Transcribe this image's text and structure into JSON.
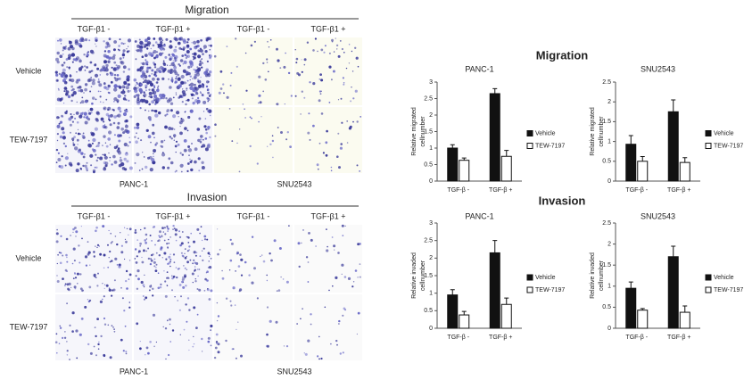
{
  "image_panels": [
    {
      "title": "Migration",
      "columns": [
        "TGF-β1 -",
        "TGF-β1 +",
        "TGF-β1 -",
        "TGF-β1 +"
      ],
      "rows": [
        "Vehicle",
        "TEW-7197"
      ],
      "cell_lines": [
        "PANC-1",
        "SNU2543"
      ]
    },
    {
      "title": "Invasion",
      "columns": [
        "TGF-β1 -",
        "TGF-β1 +",
        "TGF-β1 -",
        "TGF-β1 +"
      ],
      "rows": [
        "Vehicle",
        "TEW-7197"
      ],
      "cell_lines": [
        "PANC-1",
        "SNU2543"
      ]
    }
  ],
  "chart_sections": [
    "Migration",
    "Invasion"
  ],
  "chart_data": [
    {
      "type": "bar",
      "title": "PANC-1",
      "y_label": [
        "Relative migrated",
        "cellnumber"
      ],
      "categories": [
        "TGF-β -",
        "TGF-β +"
      ],
      "series": [
        {
          "name": "Vehicle",
          "color": "#111111",
          "values": [
            1.0,
            2.65
          ],
          "errors": [
            0.1,
            0.15
          ]
        },
        {
          "name": "TEW-7197",
          "color": "#ffffff",
          "values": [
            0.63,
            0.75
          ],
          "errors": [
            0.07,
            0.18
          ]
        }
      ],
      "ylim": [
        0,
        3
      ],
      "yticks": [
        0,
        0.5,
        1,
        1.5,
        2,
        2.5,
        3
      ],
      "legend": "right"
    },
    {
      "type": "bar",
      "title": "SNU2543",
      "y_label": [
        "Relative migrated",
        "cellnumber"
      ],
      "categories": [
        "TGF-β -",
        "TGF-β +"
      ],
      "series": [
        {
          "name": "Vehicle",
          "color": "#111111",
          "values": [
            0.93,
            1.75
          ],
          "errors": [
            0.22,
            0.3
          ]
        },
        {
          "name": "TEW-7197",
          "color": "#ffffff",
          "values": [
            0.5,
            0.47
          ],
          "errors": [
            0.12,
            0.12
          ]
        }
      ],
      "ylim": [
        0,
        2.5
      ],
      "yticks": [
        0,
        0.5,
        1,
        1.5,
        2,
        2.5
      ],
      "legend": "right"
    },
    {
      "type": "bar",
      "title": "PANC-1",
      "y_label": [
        "Relative invaded",
        "cellnumber"
      ],
      "categories": [
        "TGF-β -",
        "TGF-β +"
      ],
      "series": [
        {
          "name": "Vehicle",
          "color": "#111111",
          "values": [
            0.95,
            2.15
          ],
          "errors": [
            0.15,
            0.35
          ]
        },
        {
          "name": "TEW-7197",
          "color": "#ffffff",
          "values": [
            0.38,
            0.68
          ],
          "errors": [
            0.1,
            0.18
          ]
        }
      ],
      "ylim": [
        0,
        3
      ],
      "yticks": [
        0,
        0.5,
        1,
        1.5,
        2,
        2.5,
        3
      ],
      "legend": "right"
    },
    {
      "type": "bar",
      "title": "SNU2543",
      "y_label": [
        "Relative invaded",
        "cellnumber"
      ],
      "categories": [
        "TGF-β -",
        "TGF-β +"
      ],
      "series": [
        {
          "name": "Vehicle",
          "color": "#111111",
          "values": [
            0.95,
            1.7
          ],
          "errors": [
            0.15,
            0.25
          ]
        },
        {
          "name": "TEW-7197",
          "color": "#ffffff",
          "values": [
            0.43,
            0.38
          ],
          "errors": [
            0.04,
            0.15
          ]
        }
      ],
      "ylim": [
        0,
        2.5
      ],
      "yticks": [
        0,
        0.5,
        1,
        1.5,
        2,
        2.5
      ],
      "legend": "right"
    }
  ]
}
